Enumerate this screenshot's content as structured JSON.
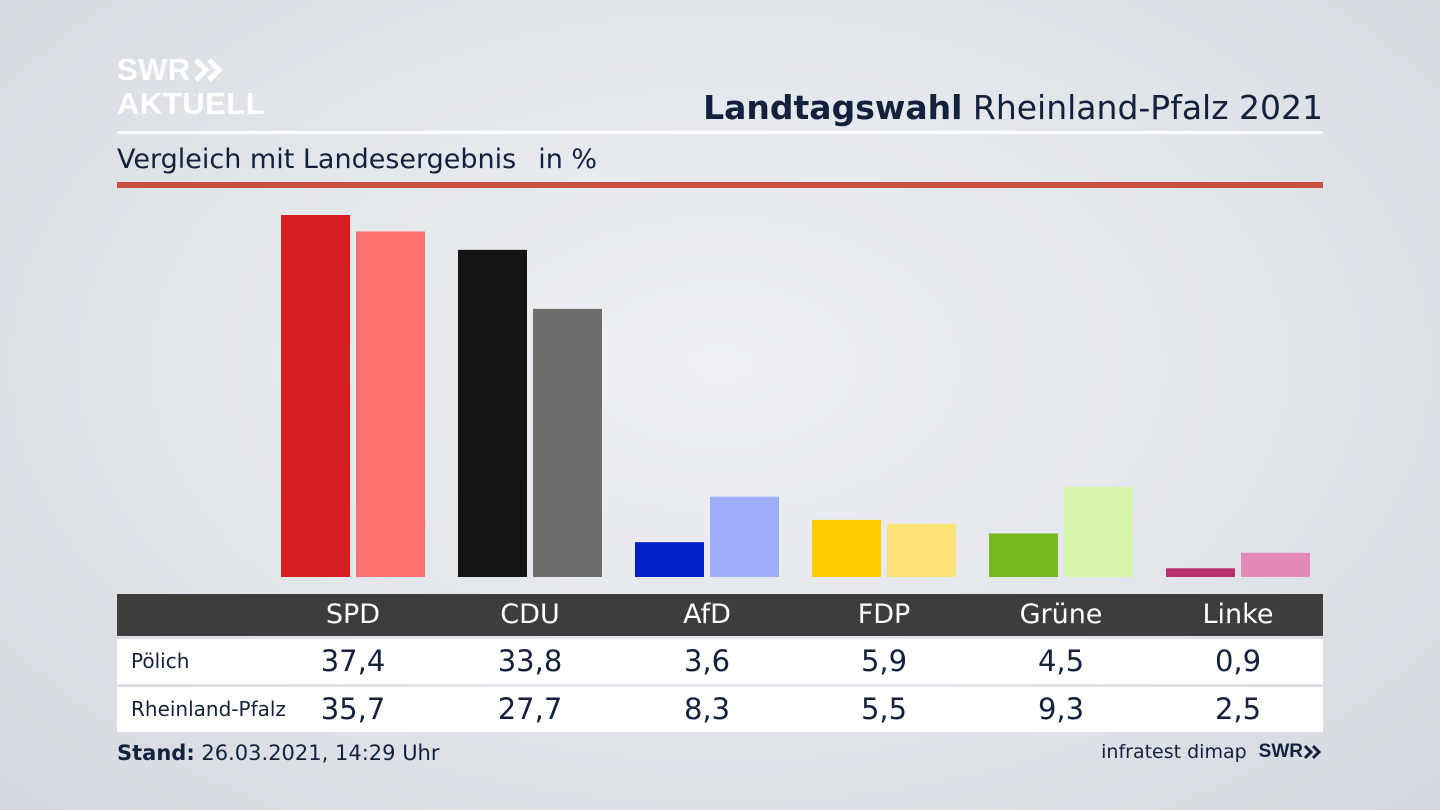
{
  "logo": {
    "line1": "SWR",
    "line2": "AKTUELL"
  },
  "header": {
    "title_bold": "Landtagswahl",
    "title_rest": "Rheinland-Pfalz 2021"
  },
  "subtitle": {
    "text": "Vergleich mit Landesergebnis",
    "unit": "in %"
  },
  "table": {
    "parties": [
      "SPD",
      "CDU",
      "AfD",
      "FDP",
      "Grüne",
      "Linke"
    ],
    "rows": [
      {
        "label": "Pölich",
        "values": [
          "37,4",
          "33,8",
          "3,6",
          "5,9",
          "4,5",
          "0,9"
        ]
      },
      {
        "label": "Rheinland-Pfalz",
        "values": [
          "35,7",
          "27,7",
          "8,3",
          "5,5",
          "9,3",
          "2,5"
        ]
      }
    ]
  },
  "footer": {
    "stand_label": "Stand:",
    "stand_value": "26.03.2021, 14:29 Uhr",
    "source": "infratest dimap",
    "brand": "SWR"
  },
  "chart_data": {
    "type": "bar",
    "categories": [
      "SPD",
      "CDU",
      "AfD",
      "FDP",
      "Grüne",
      "Linke"
    ],
    "series": [
      {
        "name": "Pölich",
        "values": [
          37.4,
          33.8,
          3.6,
          5.9,
          4.5,
          0.9
        ]
      },
      {
        "name": "Rheinland-Pfalz",
        "values": [
          35.7,
          27.7,
          8.3,
          5.5,
          9.3,
          2.5
        ]
      }
    ],
    "colors": {
      "Pölich": [
        "#d61f21",
        "#141414",
        "#0020c8",
        "#ffcc00",
        "#76b820",
        "#b8306e"
      ],
      "Rheinland-Pfalz": [
        "#fe736f",
        "#6e6d6b",
        "#9eadfc",
        "#fde276",
        "#d5f5ad",
        "#e28ab6"
      ]
    },
    "grid": false,
    "legend": "none"
  }
}
